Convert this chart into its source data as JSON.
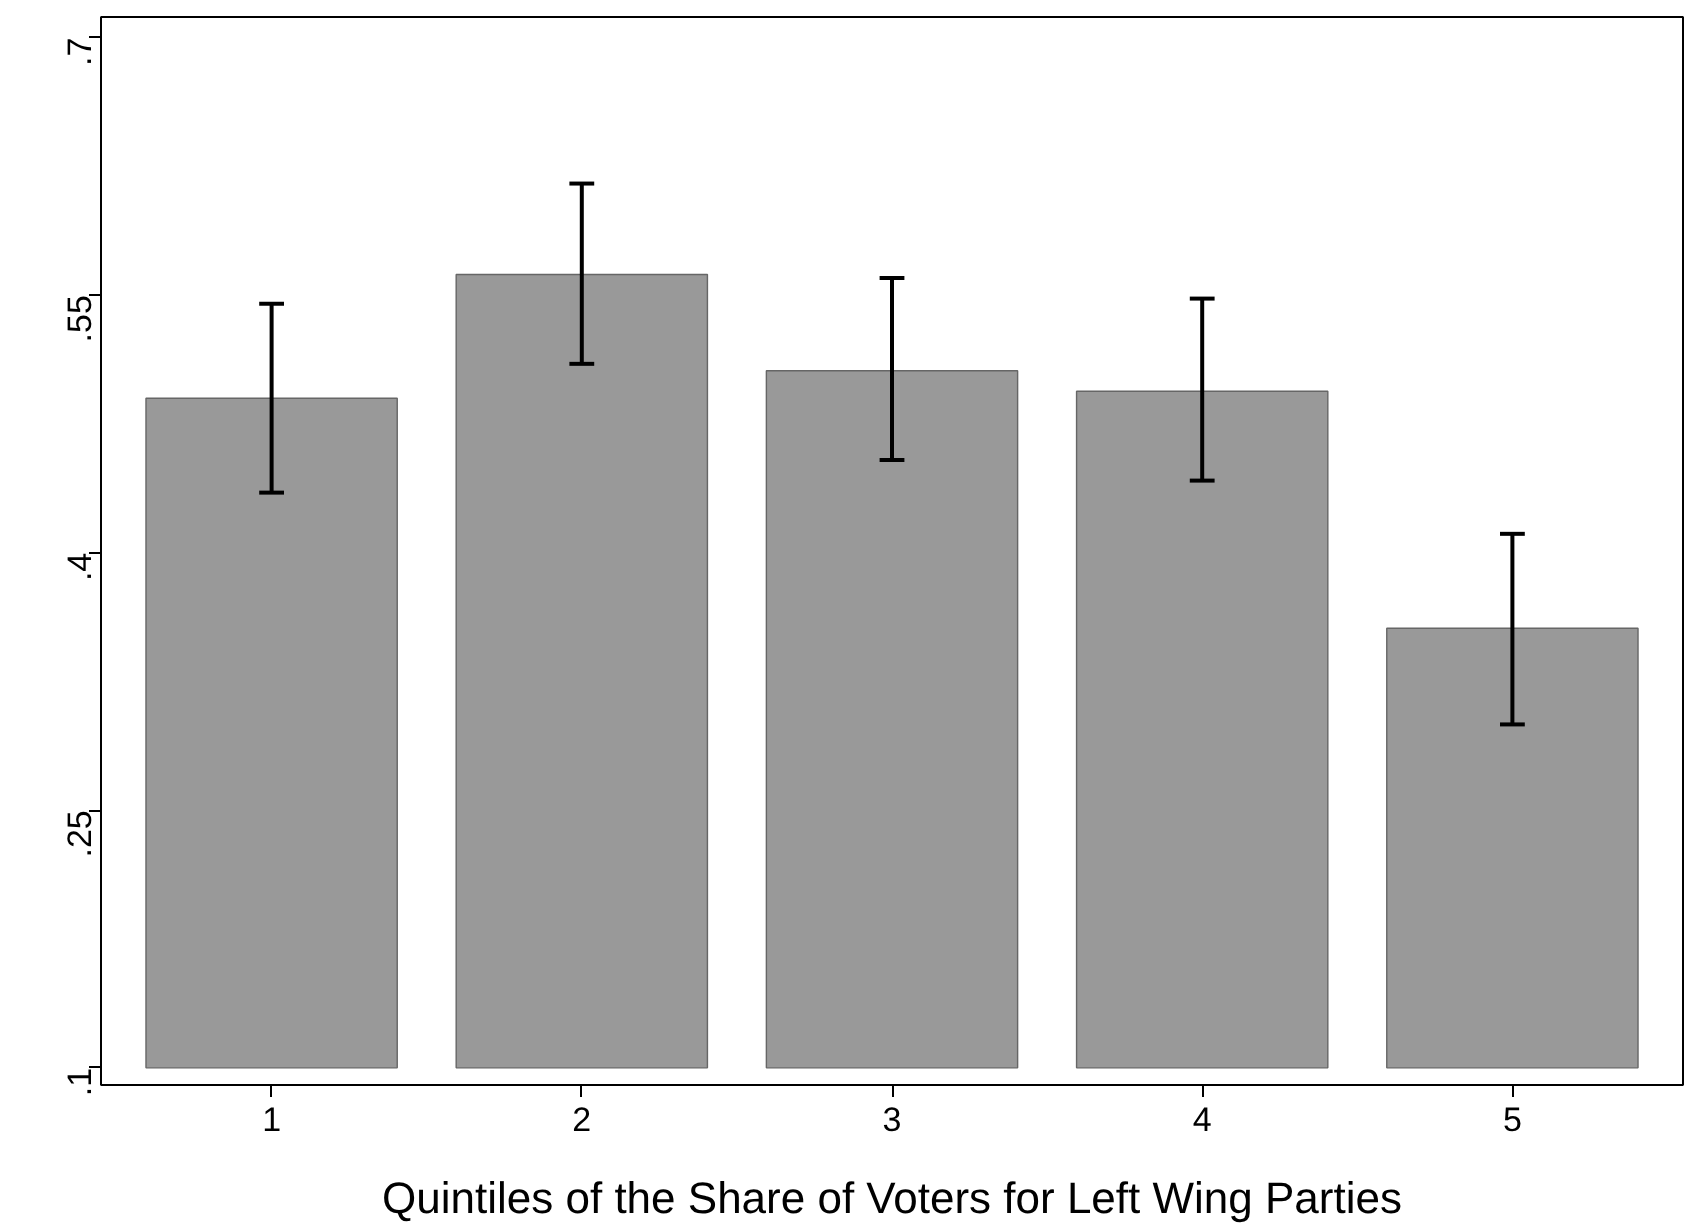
{
  "chart_data": {
    "type": "bar",
    "xlabel": "Quintiles of the Share of Voters for Left Wing Parties",
    "categories": [
      "1",
      "2",
      "3",
      "4",
      "5"
    ],
    "base": [
      0.1,
      0.1,
      0.1,
      0.1,
      0.1
    ],
    "values": [
      0.39,
      0.462,
      0.406,
      0.394,
      0.256
    ],
    "errors": [
      [
        0.435,
        0.545
      ],
      [
        0.51,
        0.615
      ],
      [
        0.454,
        0.56
      ],
      [
        0.442,
        0.548
      ],
      [
        0.3,
        0.411
      ]
    ],
    "color": "#999999",
    "ylim": [
      0.09,
      0.712
    ],
    "yticks": [
      {
        "value": 0.1,
        "label": ".1"
      },
      {
        "value": 0.25,
        "label": ".25"
      },
      {
        "value": 0.4,
        "label": ".4"
      },
      {
        "value": 0.55,
        "label": ".55"
      },
      {
        "value": 0.7,
        "label": ".7"
      }
    ],
    "grid": false
  }
}
